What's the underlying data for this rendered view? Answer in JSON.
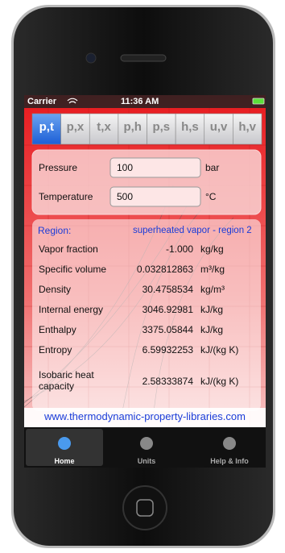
{
  "status_bar": {
    "carrier": "Carrier",
    "time": "11:36 AM"
  },
  "tabs": [
    "p,t",
    "p,x",
    "t,x",
    "p,h",
    "p,s",
    "h,s",
    "u,v",
    "h,v"
  ],
  "inputs": [
    {
      "label": "Pressure",
      "value": "100",
      "unit": "bar"
    },
    {
      "label": "Temperature",
      "value": "500",
      "unit": "°C"
    }
  ],
  "region": {
    "label": "Region:",
    "value": "superheated vapor - region 2"
  },
  "results": [
    {
      "label": "Vapor fraction",
      "value": "-1.000",
      "unit": "kg/kg"
    },
    {
      "label": "Specific volume",
      "value": "0.032812863",
      "unit": "m³/kg"
    },
    {
      "label": "Density",
      "value": "30.4758534",
      "unit": "kg/m³"
    },
    {
      "label": "Internal energy",
      "value": "3046.92981",
      "unit": "kJ/kg"
    },
    {
      "label": "Enthalpy",
      "value": "3375.05844",
      "unit": "kJ/kg"
    },
    {
      "label": "Entropy",
      "value": "6.59932253",
      "unit": "kJ/(kg K)"
    },
    {
      "label": "Isobaric heat capacity",
      "value": "2.58333874",
      "unit": "kJ/(kg K)"
    }
  ],
  "url": "www.thermodynamic-property-libraries.com",
  "tab_bar": [
    "Home",
    "Units",
    "Help & Info"
  ]
}
